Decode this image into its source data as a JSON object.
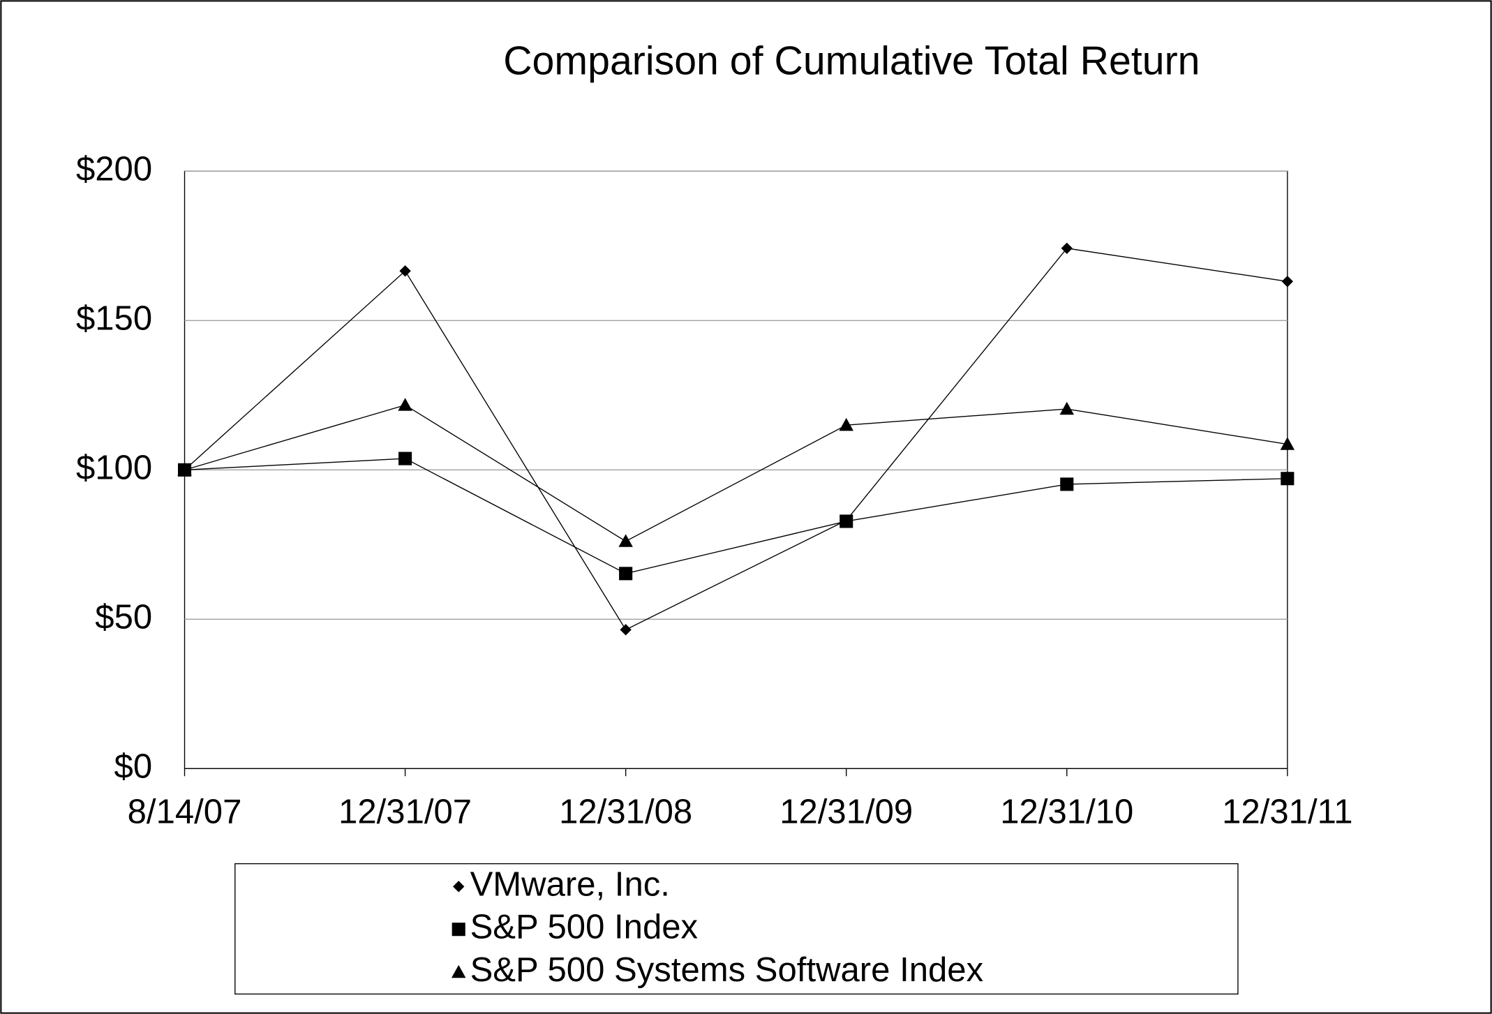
{
  "chart_data": {
    "type": "line",
    "title": "Comparison of Cumulative Total Return",
    "categories": [
      "8/14/07",
      "12/31/07",
      "12/31/08",
      "12/31/09",
      "12/31/10",
      "12/31/11"
    ],
    "series": [
      {
        "name": "VMware, Inc.",
        "color": "#000000",
        "marker": "diamond",
        "values": [
          100,
          166.6,
          46.5,
          83.1,
          174.2,
          163.1
        ]
      },
      {
        "name": "S&P 500 Index",
        "color": "#000000",
        "marker": "square",
        "values": [
          100,
          103.8,
          65.3,
          82.8,
          95.2,
          97.1
        ]
      },
      {
        "name": "S&P 500 Systems Software Index",
        "color": "#000000",
        "marker": "triangle",
        "values": [
          100,
          121.7,
          76.1,
          115,
          120.4,
          108.6
        ]
      }
    ],
    "ylim": [
      0,
      200
    ],
    "yticks": [
      {
        "value": 0,
        "label": "$0"
      },
      {
        "value": 50,
        "label": "$50"
      },
      {
        "value": 100,
        "label": "$100"
      },
      {
        "value": 150,
        "label": "$150"
      },
      {
        "value": 200,
        "label": "$200"
      }
    ],
    "grid": true,
    "legend": "bottom"
  }
}
